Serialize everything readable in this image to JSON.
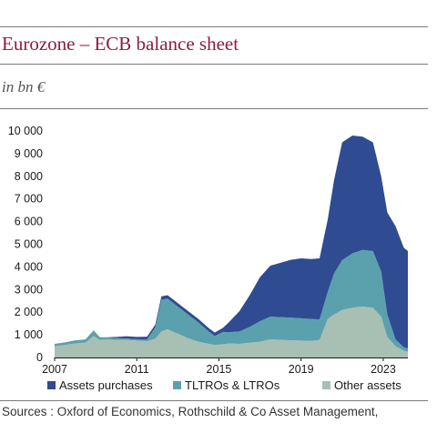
{
  "header": {
    "title": "Eurozone – ECB balance sheet",
    "subtitle": "in bn €"
  },
  "footer": {
    "source": "Sources : Oxford of Economics, Rothschild & Co Asset Management,"
  },
  "chart_data": {
    "type": "area",
    "stacked": true,
    "title": "Eurozone – ECB balance sheet",
    "ylabel": "in bn €",
    "xlim": [
      2007,
      2024.2
    ],
    "ylim": [
      0,
      10000
    ],
    "yticks": [
      0,
      1000,
      2000,
      3000,
      4000,
      5000,
      6000,
      7000,
      8000,
      9000,
      10000
    ],
    "ytick_labels": [
      "0",
      "1 000",
      "2 000",
      "3 000",
      "4 000",
      "5 000",
      "6 000",
      "7 000",
      "8 000",
      "9 000",
      "10 000"
    ],
    "xticks": [
      2007,
      2011,
      2015,
      2019,
      2023
    ],
    "xtick_labels": [
      "2007",
      "2011",
      "2015",
      "2019",
      "2023"
    ],
    "grid": false,
    "legend_position": "bottom",
    "x": [
      2007.0,
      2007.5,
      2008.0,
      2008.5,
      2008.9,
      2009.2,
      2009.5,
      2010.0,
      2010.5,
      2011.0,
      2011.5,
      2011.9,
      2012.2,
      2012.5,
      2013.0,
      2013.5,
      2014.0,
      2014.5,
      2014.8,
      2015.2,
      2015.5,
      2016.0,
      2016.5,
      2017.0,
      2017.5,
      2018.0,
      2018.5,
      2019.0,
      2019.5,
      2019.9,
      2020.3,
      2020.6,
      2021.0,
      2021.5,
      2022.0,
      2022.5,
      2022.9,
      2023.2,
      2023.6,
      2024.0,
      2024.2
    ],
    "series": [
      {
        "name": "Other assets",
        "color": "#a8bfb4",
        "values": [
          500,
          550,
          620,
          650,
          950,
          780,
          800,
          780,
          780,
          750,
          720,
          830,
          1150,
          1250,
          1050,
          850,
          700,
          600,
          550,
          580,
          620,
          600,
          650,
          700,
          800,
          780,
          760,
          750,
          740,
          780,
          1700,
          1900,
          2100,
          2200,
          2250,
          2200,
          1800,
          900,
          500,
          300,
          250
        ]
      },
      {
        "name": "TLTROs & LTROs",
        "color": "#5ba1ad",
        "values": [
          100,
          120,
          140,
          150,
          250,
          120,
          80,
          80,
          60,
          60,
          80,
          500,
          1400,
          1350,
          1200,
          1050,
          850,
          550,
          400,
          550,
          500,
          550,
          700,
          900,
          1000,
          1000,
          1000,
          980,
          960,
          900,
          1200,
          1800,
          2200,
          2400,
          2500,
          2500,
          2000,
          1000,
          300,
          150,
          150
        ]
      },
      {
        "name": "Assets purchases",
        "color": "#2f4b91",
        "values": [
          0,
          0,
          0,
          0,
          0,
          0,
          10,
          50,
          100,
          100,
          120,
          120,
          150,
          150,
          150,
          150,
          150,
          150,
          150,
          180,
          450,
          900,
          1400,
          1950,
          2250,
          2400,
          2550,
          2650,
          2650,
          2700,
          3200,
          4100,
          5200,
          5200,
          5000,
          4800,
          4200,
          4500,
          5000,
          4400,
          4300
        ]
      }
    ]
  }
}
